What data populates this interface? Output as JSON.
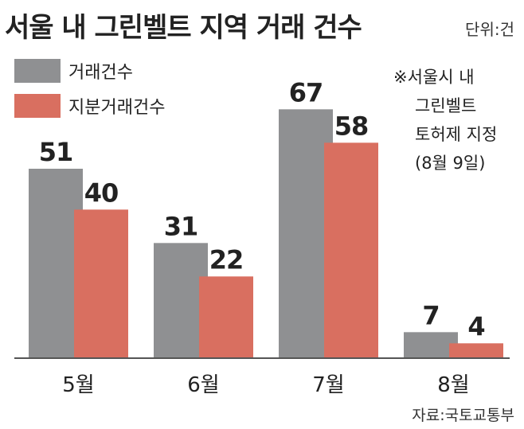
{
  "title": "서울 내 그린벨트 지역 거래 건수",
  "unit": "단위:건",
  "note_lines": [
    "※서울시 내",
    "그린벨트",
    "토허제 지정",
    "(8월 9일)"
  ],
  "source": "자료:국토교통부",
  "colors": {
    "series1": "#8f9092",
    "series2": "#d96f60",
    "axis": "#555555"
  },
  "chart_data": {
    "type": "bar",
    "categories": [
      "5월",
      "6월",
      "7월",
      "8월"
    ],
    "series": [
      {
        "name": "거래건수",
        "values": [
          51,
          31,
          67,
          7
        ]
      },
      {
        "name": "지분거래건수",
        "values": [
          40,
          22,
          58,
          4
        ]
      }
    ],
    "ylim": [
      0,
      75
    ],
    "legend": "top-left",
    "grid": false
  }
}
